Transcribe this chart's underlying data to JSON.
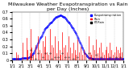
{
  "title": "Milwaukee Weather Evapotranspiration vs Rain per Day (Inches)",
  "title_fontsize": 4.5,
  "background_color": "#ffffff",
  "xlabel": "",
  "ylabel": "",
  "ylim": [
    0,
    0.7
  ],
  "xlim": [
    0,
    365
  ],
  "grid_color": "#aaaaaa",
  "x_ticks": [
    1,
    32,
    60,
    91,
    121,
    152,
    182,
    213,
    244,
    274,
    305,
    335,
    365
  ],
  "x_tick_labels": [
    "1/1",
    "2/1",
    "3/1",
    "4/1",
    "5/1",
    "6/1",
    "7/1",
    "8/1",
    "9/1",
    "10/1",
    "11/1",
    "12/1",
    "1/1"
  ],
  "tick_fontsize": 3.5,
  "legend_labels": [
    "Evapotranspiration",
    "Rain",
    "ET-Rain"
  ],
  "legend_colors": [
    "#0000ff",
    "#ff0000",
    "#000000"
  ],
  "et_data": [
    [
      1,
      0.02
    ],
    [
      2,
      0.02
    ],
    [
      3,
      0.02
    ],
    [
      4,
      0.02
    ],
    [
      5,
      0.02
    ],
    [
      6,
      0.02
    ],
    [
      7,
      0.02
    ],
    [
      8,
      0.02
    ],
    [
      9,
      0.02
    ],
    [
      10,
      0.02
    ],
    [
      11,
      0.02
    ],
    [
      12,
      0.02
    ],
    [
      13,
      0.02
    ],
    [
      14,
      0.02
    ],
    [
      15,
      0.02
    ],
    [
      16,
      0.02
    ],
    [
      17,
      0.02
    ],
    [
      18,
      0.02
    ],
    [
      19,
      0.02
    ],
    [
      20,
      0.02
    ],
    [
      21,
      0.02
    ],
    [
      22,
      0.02
    ],
    [
      23,
      0.02
    ],
    [
      24,
      0.02
    ],
    [
      25,
      0.02
    ],
    [
      26,
      0.02
    ],
    [
      27,
      0.02
    ],
    [
      28,
      0.02
    ],
    [
      29,
      0.02
    ],
    [
      30,
      0.02
    ],
    [
      31,
      0.02
    ],
    [
      32,
      0.03
    ],
    [
      33,
      0.03
    ],
    [
      34,
      0.03
    ],
    [
      35,
      0.03
    ],
    [
      36,
      0.03
    ],
    [
      37,
      0.03
    ],
    [
      38,
      0.03
    ],
    [
      39,
      0.03
    ],
    [
      40,
      0.03
    ],
    [
      41,
      0.03
    ],
    [
      42,
      0.03
    ],
    [
      43,
      0.03
    ],
    [
      44,
      0.03
    ],
    [
      45,
      0.03
    ],
    [
      46,
      0.04
    ],
    [
      47,
      0.04
    ],
    [
      48,
      0.04
    ],
    [
      49,
      0.04
    ],
    [
      50,
      0.04
    ],
    [
      51,
      0.04
    ],
    [
      52,
      0.04
    ],
    [
      53,
      0.04
    ],
    [
      54,
      0.04
    ],
    [
      55,
      0.05
    ],
    [
      56,
      0.05
    ],
    [
      57,
      0.05
    ],
    [
      58,
      0.05
    ],
    [
      59,
      0.05
    ],
    [
      60,
      0.06
    ],
    [
      61,
      0.06
    ],
    [
      62,
      0.06
    ],
    [
      63,
      0.07
    ],
    [
      64,
      0.07
    ],
    [
      65,
      0.08
    ],
    [
      66,
      0.08
    ],
    [
      67,
      0.09
    ],
    [
      68,
      0.09
    ],
    [
      69,
      0.1
    ],
    [
      70,
      0.1
    ],
    [
      71,
      0.11
    ],
    [
      72,
      0.12
    ],
    [
      73,
      0.13
    ],
    [
      74,
      0.14
    ],
    [
      75,
      0.15
    ],
    [
      76,
      0.16
    ],
    [
      77,
      0.17
    ],
    [
      78,
      0.18
    ],
    [
      79,
      0.19
    ],
    [
      80,
      0.2
    ],
    [
      81,
      0.21
    ],
    [
      82,
      0.22
    ],
    [
      83,
      0.23
    ],
    [
      84,
      0.24
    ],
    [
      85,
      0.25
    ],
    [
      86,
      0.26
    ],
    [
      87,
      0.27
    ],
    [
      88,
      0.28
    ],
    [
      89,
      0.29
    ],
    [
      90,
      0.3
    ],
    [
      91,
      0.31
    ],
    [
      92,
      0.32
    ],
    [
      93,
      0.33
    ],
    [
      94,
      0.34
    ],
    [
      95,
      0.34
    ],
    [
      96,
      0.35
    ],
    [
      97,
      0.35
    ],
    [
      98,
      0.36
    ],
    [
      99,
      0.37
    ],
    [
      100,
      0.38
    ],
    [
      101,
      0.39
    ],
    [
      102,
      0.4
    ],
    [
      103,
      0.41
    ],
    [
      104,
      0.42
    ],
    [
      105,
      0.43
    ],
    [
      106,
      0.44
    ],
    [
      107,
      0.45
    ],
    [
      108,
      0.45
    ],
    [
      109,
      0.46
    ],
    [
      110,
      0.46
    ],
    [
      111,
      0.47
    ],
    [
      112,
      0.47
    ],
    [
      113,
      0.48
    ],
    [
      114,
      0.48
    ],
    [
      115,
      0.49
    ],
    [
      116,
      0.49
    ],
    [
      117,
      0.5
    ],
    [
      118,
      0.5
    ],
    [
      119,
      0.51
    ],
    [
      120,
      0.51
    ],
    [
      121,
      0.52
    ],
    [
      122,
      0.52
    ],
    [
      123,
      0.53
    ],
    [
      124,
      0.53
    ],
    [
      125,
      0.54
    ],
    [
      126,
      0.54
    ],
    [
      127,
      0.55
    ],
    [
      128,
      0.55
    ],
    [
      129,
      0.55
    ],
    [
      130,
      0.56
    ],
    [
      131,
      0.56
    ],
    [
      132,
      0.57
    ],
    [
      133,
      0.57
    ],
    [
      134,
      0.58
    ],
    [
      135,
      0.58
    ],
    [
      136,
      0.59
    ],
    [
      137,
      0.59
    ],
    [
      138,
      0.6
    ],
    [
      139,
      0.6
    ],
    [
      140,
      0.6
    ],
    [
      141,
      0.61
    ],
    [
      142,
      0.61
    ],
    [
      143,
      0.62
    ],
    [
      144,
      0.62
    ],
    [
      145,
      0.63
    ],
    [
      146,
      0.63
    ],
    [
      147,
      0.63
    ],
    [
      148,
      0.63
    ],
    [
      149,
      0.64
    ],
    [
      150,
      0.64
    ],
    [
      151,
      0.64
    ],
    [
      152,
      0.64
    ],
    [
      153,
      0.64
    ],
    [
      154,
      0.64
    ],
    [
      155,
      0.65
    ],
    [
      156,
      0.65
    ],
    [
      157,
      0.65
    ],
    [
      158,
      0.65
    ],
    [
      159,
      0.65
    ],
    [
      160,
      0.65
    ],
    [
      161,
      0.65
    ],
    [
      162,
      0.65
    ],
    [
      163,
      0.64
    ],
    [
      164,
      0.64
    ],
    [
      165,
      0.64
    ],
    [
      166,
      0.64
    ],
    [
      167,
      0.63
    ],
    [
      168,
      0.63
    ],
    [
      169,
      0.63
    ],
    [
      170,
      0.62
    ],
    [
      171,
      0.62
    ],
    [
      172,
      0.62
    ],
    [
      173,
      0.61
    ],
    [
      174,
      0.61
    ],
    [
      175,
      0.6
    ],
    [
      176,
      0.6
    ],
    [
      177,
      0.59
    ],
    [
      178,
      0.59
    ],
    [
      179,
      0.58
    ],
    [
      180,
      0.58
    ],
    [
      181,
      0.57
    ],
    [
      182,
      0.57
    ],
    [
      183,
      0.56
    ],
    [
      184,
      0.56
    ],
    [
      185,
      0.55
    ],
    [
      186,
      0.55
    ],
    [
      187,
      0.54
    ],
    [
      188,
      0.54
    ],
    [
      189,
      0.53
    ],
    [
      190,
      0.52
    ],
    [
      191,
      0.52
    ],
    [
      192,
      0.51
    ],
    [
      193,
      0.5
    ],
    [
      194,
      0.5
    ],
    [
      195,
      0.49
    ],
    [
      196,
      0.48
    ],
    [
      197,
      0.48
    ],
    [
      198,
      0.47
    ],
    [
      199,
      0.46
    ],
    [
      200,
      0.46
    ],
    [
      201,
      0.45
    ],
    [
      202,
      0.44
    ],
    [
      203,
      0.43
    ],
    [
      204,
      0.43
    ],
    [
      205,
      0.42
    ],
    [
      206,
      0.41
    ],
    [
      207,
      0.4
    ],
    [
      208,
      0.39
    ],
    [
      209,
      0.39
    ],
    [
      210,
      0.38
    ],
    [
      211,
      0.37
    ],
    [
      212,
      0.36
    ],
    [
      213,
      0.35
    ],
    [
      214,
      0.34
    ],
    [
      215,
      0.33
    ],
    [
      216,
      0.32
    ],
    [
      217,
      0.31
    ],
    [
      218,
      0.3
    ],
    [
      219,
      0.29
    ],
    [
      220,
      0.28
    ],
    [
      221,
      0.27
    ],
    [
      222,
      0.26
    ],
    [
      223,
      0.25
    ],
    [
      224,
      0.24
    ],
    [
      225,
      0.23
    ],
    [
      226,
      0.22
    ],
    [
      227,
      0.21
    ],
    [
      228,
      0.2
    ],
    [
      229,
      0.19
    ],
    [
      230,
      0.18
    ],
    [
      231,
      0.17
    ],
    [
      232,
      0.16
    ],
    [
      233,
      0.15
    ],
    [
      234,
      0.14
    ],
    [
      235,
      0.13
    ],
    [
      236,
      0.12
    ],
    [
      237,
      0.11
    ],
    [
      238,
      0.1
    ],
    [
      239,
      0.1
    ],
    [
      240,
      0.09
    ],
    [
      241,
      0.09
    ],
    [
      242,
      0.08
    ],
    [
      243,
      0.08
    ],
    [
      244,
      0.07
    ],
    [
      245,
      0.07
    ],
    [
      246,
      0.06
    ],
    [
      247,
      0.06
    ],
    [
      248,
      0.05
    ],
    [
      249,
      0.05
    ],
    [
      250,
      0.05
    ],
    [
      251,
      0.04
    ],
    [
      252,
      0.04
    ],
    [
      253,
      0.04
    ],
    [
      254,
      0.04
    ],
    [
      255,
      0.03
    ],
    [
      256,
      0.03
    ],
    [
      257,
      0.03
    ],
    [
      258,
      0.03
    ],
    [
      259,
      0.03
    ],
    [
      260,
      0.03
    ],
    [
      261,
      0.02
    ],
    [
      262,
      0.02
    ],
    [
      263,
      0.02
    ],
    [
      264,
      0.02
    ],
    [
      265,
      0.02
    ],
    [
      266,
      0.02
    ],
    [
      267,
      0.02
    ],
    [
      268,
      0.02
    ],
    [
      269,
      0.02
    ],
    [
      270,
      0.02
    ],
    [
      271,
      0.02
    ],
    [
      272,
      0.02
    ],
    [
      273,
      0.02
    ],
    [
      274,
      0.02
    ],
    [
      275,
      0.02
    ],
    [
      276,
      0.02
    ],
    [
      277,
      0.02
    ],
    [
      278,
      0.02
    ],
    [
      279,
      0.02
    ],
    [
      280,
      0.02
    ],
    [
      281,
      0.02
    ],
    [
      282,
      0.02
    ],
    [
      283,
      0.02
    ],
    [
      284,
      0.02
    ],
    [
      285,
      0.02
    ],
    [
      286,
      0.02
    ],
    [
      287,
      0.02
    ],
    [
      288,
      0.02
    ],
    [
      289,
      0.02
    ],
    [
      290,
      0.02
    ],
    [
      291,
      0.02
    ],
    [
      292,
      0.02
    ],
    [
      293,
      0.02
    ],
    [
      294,
      0.02
    ],
    [
      295,
      0.02
    ],
    [
      296,
      0.02
    ],
    [
      297,
      0.02
    ],
    [
      298,
      0.02
    ],
    [
      299,
      0.02
    ],
    [
      300,
      0.02
    ],
    [
      301,
      0.02
    ],
    [
      302,
      0.02
    ],
    [
      303,
      0.02
    ],
    [
      304,
      0.02
    ],
    [
      305,
      0.02
    ],
    [
      306,
      0.02
    ],
    [
      307,
      0.02
    ],
    [
      308,
      0.02
    ],
    [
      309,
      0.02
    ],
    [
      310,
      0.02
    ],
    [
      311,
      0.02
    ],
    [
      312,
      0.02
    ],
    [
      313,
      0.02
    ],
    [
      314,
      0.02
    ],
    [
      315,
      0.02
    ],
    [
      316,
      0.02
    ],
    [
      317,
      0.02
    ],
    [
      318,
      0.02
    ],
    [
      319,
      0.02
    ],
    [
      320,
      0.02
    ],
    [
      321,
      0.02
    ],
    [
      322,
      0.02
    ],
    [
      323,
      0.02
    ],
    [
      324,
      0.02
    ],
    [
      325,
      0.02
    ],
    [
      326,
      0.02
    ],
    [
      327,
      0.02
    ],
    [
      328,
      0.02
    ],
    [
      329,
      0.02
    ],
    [
      330,
      0.02
    ],
    [
      331,
      0.02
    ],
    [
      332,
      0.02
    ],
    [
      333,
      0.02
    ],
    [
      334,
      0.02
    ],
    [
      335,
      0.02
    ],
    [
      336,
      0.02
    ],
    [
      337,
      0.02
    ],
    [
      338,
      0.02
    ],
    [
      339,
      0.02
    ],
    [
      340,
      0.02
    ],
    [
      341,
      0.02
    ],
    [
      342,
      0.02
    ],
    [
      343,
      0.02
    ],
    [
      344,
      0.02
    ],
    [
      345,
      0.02
    ],
    [
      346,
      0.02
    ],
    [
      347,
      0.02
    ],
    [
      348,
      0.02
    ],
    [
      349,
      0.02
    ],
    [
      350,
      0.02
    ],
    [
      351,
      0.02
    ],
    [
      352,
      0.02
    ],
    [
      353,
      0.02
    ],
    [
      354,
      0.02
    ],
    [
      355,
      0.02
    ],
    [
      356,
      0.02
    ],
    [
      357,
      0.02
    ],
    [
      358,
      0.02
    ],
    [
      359,
      0.02
    ],
    [
      360,
      0.02
    ],
    [
      361,
      0.02
    ],
    [
      362,
      0.02
    ],
    [
      363,
      0.02
    ],
    [
      364,
      0.02
    ],
    [
      365,
      0.02
    ]
  ],
  "rain_data": [
    [
      15,
      0.12
    ],
    [
      20,
      0.08
    ],
    [
      35,
      0.25
    ],
    [
      48,
      0.32
    ],
    [
      52,
      0.15
    ],
    [
      58,
      0.1
    ],
    [
      62,
      0.45
    ],
    [
      65,
      0.18
    ],
    [
      70,
      0.08
    ],
    [
      78,
      0.22
    ],
    [
      85,
      0.35
    ],
    [
      90,
      0.15
    ],
    [
      95,
      0.1
    ],
    [
      100,
      0.28
    ],
    [
      105,
      0.2
    ],
    [
      110,
      0.35
    ],
    [
      115,
      0.12
    ],
    [
      120,
      0.08
    ],
    [
      125,
      0.45
    ],
    [
      130,
      0.22
    ],
    [
      135,
      0.18
    ],
    [
      140,
      0.35
    ],
    [
      145,
      0.1
    ],
    [
      150,
      0.28
    ],
    [
      155,
      0.15
    ],
    [
      160,
      0.08
    ],
    [
      165,
      0.4
    ],
    [
      170,
      0.18
    ],
    [
      175,
      0.22
    ],
    [
      180,
      0.12
    ],
    [
      185,
      0.35
    ],
    [
      190,
      0.18
    ],
    [
      195,
      0.1
    ],
    [
      200,
      0.25
    ],
    [
      205,
      0.15
    ],
    [
      210,
      0.08
    ],
    [
      215,
      0.3
    ],
    [
      220,
      0.12
    ],
    [
      225,
      0.2
    ],
    [
      230,
      0.08
    ],
    [
      235,
      0.15
    ],
    [
      240,
      0.1
    ],
    [
      250,
      0.35
    ],
    [
      255,
      0.12
    ],
    [
      260,
      0.08
    ],
    [
      265,
      0.22
    ],
    [
      270,
      0.15
    ],
    [
      275,
      0.3
    ],
    [
      280,
      0.1
    ],
    [
      285,
      0.18
    ],
    [
      290,
      0.25
    ],
    [
      295,
      0.12
    ],
    [
      300,
      0.08
    ],
    [
      305,
      0.15
    ],
    [
      310,
      0.2
    ],
    [
      315,
      0.1
    ],
    [
      320,
      0.25
    ],
    [
      325,
      0.15
    ],
    [
      330,
      0.08
    ],
    [
      335,
      0.12
    ],
    [
      340,
      0.2
    ],
    [
      345,
      0.15
    ],
    [
      350,
      0.1
    ],
    [
      355,
      0.18
    ],
    [
      360,
      0.12
    ],
    [
      365,
      0.08
    ]
  ],
  "diff_data_neg": [
    [
      62,
      0.15
    ],
    [
      65,
      0.05
    ],
    [
      78,
      0.02
    ],
    [
      85,
      0.1
    ],
    [
      100,
      0.05
    ],
    [
      110,
      0.1
    ],
    [
      125,
      0.1
    ],
    [
      130,
      0.02
    ],
    [
      140,
      0.05
    ],
    [
      150,
      0.05
    ],
    [
      165,
      0.1
    ],
    [
      175,
      0.05
    ],
    [
      185,
      0.05
    ],
    [
      200,
      0.02
    ],
    [
      215,
      0.05
    ],
    [
      250,
      0.1
    ],
    [
      265,
      0.02
    ],
    [
      275,
      0.08
    ],
    [
      290,
      0.05
    ],
    [
      320,
      0.05
    ],
    [
      340,
      0.05
    ],
    [
      355,
      0.05
    ]
  ]
}
